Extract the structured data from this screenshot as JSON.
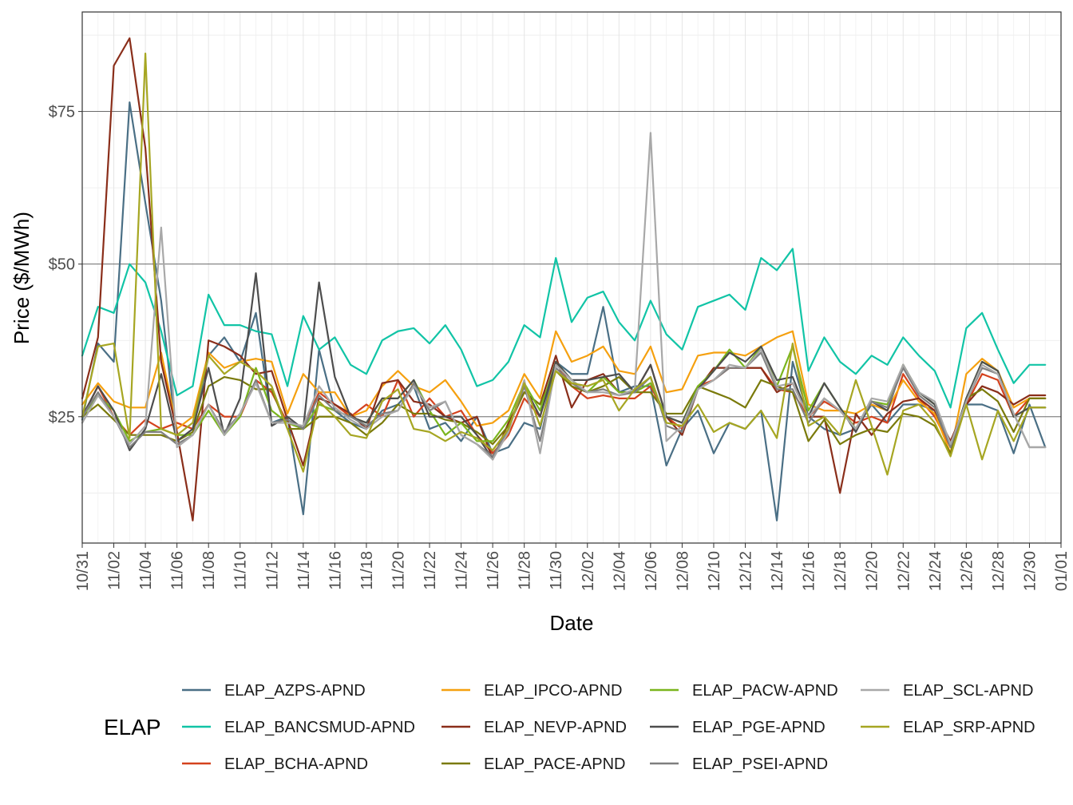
{
  "chart_data": {
    "type": "line",
    "xlabel": "Date",
    "ylabel": "Price ($/MWh)",
    "legend_title": "ELAP",
    "legend_position": "bottom",
    "grid": true,
    "ylim": [
      4.3,
      91.3
    ],
    "yticks": [
      25,
      50,
      75
    ],
    "ytick_labels": [
      "$25",
      "$50",
      "$75"
    ],
    "xlim": [
      0,
      62
    ],
    "xticks": [
      0,
      2,
      4,
      6,
      8,
      10,
      12,
      14,
      16,
      18,
      20,
      22,
      24,
      26,
      28,
      30,
      32,
      34,
      36,
      38,
      40,
      42,
      44,
      46,
      48,
      50,
      52,
      54,
      56,
      58,
      60,
      62
    ],
    "xtick_labels": [
      "10/31",
      "11/02",
      "11/04",
      "11/06",
      "11/08",
      "11/10",
      "11/12",
      "11/14",
      "11/16",
      "11/18",
      "11/20",
      "11/22",
      "11/24",
      "11/26",
      "11/28",
      "11/30",
      "12/02",
      "12/04",
      "12/06",
      "12/08",
      "12/10",
      "12/12",
      "12/14",
      "12/16",
      "12/18",
      "12/20",
      "12/22",
      "12/24",
      "12/26",
      "12/28",
      "12/30",
      "01/01"
    ],
    "x": [
      "10/31",
      "11/01",
      "11/02",
      "11/03",
      "11/04",
      "11/05",
      "11/06",
      "11/07",
      "11/08",
      "11/09",
      "11/10",
      "11/11",
      "11/12",
      "11/13",
      "11/14",
      "11/15",
      "11/16",
      "11/17",
      "11/18",
      "11/19",
      "11/20",
      "11/21",
      "11/22",
      "11/23",
      "11/24",
      "11/25",
      "11/26",
      "11/27",
      "11/28",
      "11/29",
      "11/30",
      "12/01",
      "12/02",
      "12/03",
      "12/04",
      "12/05",
      "12/06",
      "12/07",
      "12/08",
      "12/09",
      "12/10",
      "12/11",
      "12/12",
      "12/13",
      "12/14",
      "12/15",
      "12/16",
      "12/17",
      "12/18",
      "12/19",
      "12/20",
      "12/21",
      "12/22",
      "12/23",
      "12/24",
      "12/25",
      "12/26",
      "12/27",
      "12/28",
      "12/29",
      "12/30",
      "12/31"
    ],
    "series": [
      {
        "name": "ELAP_AZPS-APND",
        "color": "#4a6f85",
        "values": [
          24.5,
          37,
          34,
          76.5,
          60,
          44,
          21,
          23,
          35,
          38,
          34,
          42,
          24,
          25,
          9,
          36,
          26,
          24,
          23,
          26,
          27,
          30,
          23,
          24,
          21,
          25,
          19,
          20,
          24,
          23,
          34,
          32,
          32,
          43,
          29,
          30,
          30,
          17,
          23,
          26,
          19,
          24,
          23,
          26,
          8,
          34,
          25,
          23,
          22,
          23,
          27,
          24,
          27,
          27,
          26,
          20,
          27,
          27,
          26,
          19,
          27,
          20
        ]
      },
      {
        "name": "ELAP_BANCSMUD-APND",
        "color": "#11c4a6",
        "values": [
          35,
          43,
          42,
          50,
          47,
          39,
          28.5,
          30,
          45,
          40,
          40,
          39,
          38.5,
          30,
          41.5,
          36,
          38,
          33.5,
          32,
          37.5,
          39,
          39.5,
          37,
          40,
          36,
          30,
          31,
          34,
          40,
          38,
          51,
          40.5,
          44.5,
          45.5,
          40.5,
          37.5,
          44,
          38.5,
          36,
          43,
          44,
          45,
          42.5,
          51,
          49,
          52.5,
          32.5,
          38,
          34,
          32,
          35,
          33.5,
          38,
          35,
          32.5,
          26.5,
          39.5,
          42,
          36,
          30.5,
          33.5,
          33.5
        ]
      },
      {
        "name": "ELAP_BCHA-APND",
        "color": "#d4421e",
        "values": [
          25,
          30,
          25,
          22,
          24.5,
          23,
          24,
          23,
          27,
          25,
          25,
          31,
          29,
          24,
          23,
          29,
          27,
          25,
          27,
          25,
          31,
          25,
          28,
          25,
          26,
          22,
          19,
          22,
          28,
          25,
          34,
          30,
          28,
          28.5,
          28,
          28,
          30,
          25,
          23,
          30,
          31,
          33,
          33,
          33,
          29.5,
          29,
          25,
          27.5,
          26,
          24,
          25,
          24,
          32,
          28,
          25,
          20,
          27,
          32,
          31,
          25,
          28,
          28
        ]
      },
      {
        "name": "ELAP_IPCO-APND",
        "color": "#f5a00f",
        "values": [
          27,
          30.5,
          27.5,
          26.5,
          26.5,
          35.5,
          23,
          25,
          35.5,
          33,
          34,
          34.5,
          34,
          25.5,
          32,
          29,
          29,
          25,
          26,
          30,
          32.5,
          30,
          29,
          31,
          27.5,
          23.5,
          24,
          26,
          32,
          28,
          39,
          34,
          35,
          36.5,
          32.5,
          32,
          36.5,
          29,
          29.5,
          35,
          35.5,
          35.5,
          35,
          36.5,
          38,
          39,
          27,
          26,
          26,
          25.5,
          27,
          26,
          31,
          27.5,
          25.5,
          19,
          32,
          34.5,
          32.5,
          26.5,
          28,
          28
        ]
      },
      {
        "name": "ELAP_NEVP-APND",
        "color": "#8a2e1a",
        "values": [
          28,
          38,
          82.5,
          87,
          69,
          34,
          22.5,
          8,
          37.5,
          36.5,
          35,
          32,
          32.5,
          24.5,
          17,
          28,
          27,
          25.5,
          23,
          30.5,
          31,
          27.5,
          27,
          25,
          24,
          25,
          18,
          24,
          29,
          27,
          35,
          26.5,
          31,
          32,
          29,
          29,
          33.5,
          25,
          22,
          29.5,
          33,
          33,
          33,
          33,
          29,
          30.5,
          25,
          25,
          12.5,
          25.5,
          22,
          25.5,
          27.5,
          28,
          26,
          21,
          27,
          30,
          29,
          27,
          28.5,
          28.5
        ]
      },
      {
        "name": "ELAP_PACE-APND",
        "color": "#7a7a0a",
        "values": [
          25,
          27,
          24.5,
          22,
          22,
          22,
          21,
          22.5,
          30,
          31.5,
          31,
          29.5,
          29.5,
          23,
          23,
          25,
          25,
          24,
          22,
          24,
          27,
          25.5,
          25.5,
          24.5,
          24,
          22.5,
          20.5,
          23.5,
          29,
          27,
          32.5,
          30,
          29,
          30,
          31.5,
          29,
          29,
          25.5,
          25.5,
          30,
          29,
          28,
          26.5,
          31,
          30,
          29,
          21,
          24.5,
          20.5,
          22,
          23,
          22.5,
          25.5,
          25,
          23.5,
          19,
          28,
          29.5,
          27.5,
          22.5,
          28,
          28
        ]
      },
      {
        "name": "ELAP_PACW-APND",
        "color": "#7ab51d",
        "values": [
          25,
          28.5,
          26,
          21,
          22.5,
          23,
          22,
          22,
          26,
          22,
          25,
          33,
          26,
          24,
          23,
          27,
          26,
          25,
          24,
          28,
          28,
          31,
          26,
          22,
          24,
          21,
          21,
          24.5,
          30.5,
          26,
          34,
          31,
          29,
          31.5,
          29,
          29,
          30.5,
          25,
          24,
          30,
          32.5,
          36,
          33,
          36.5,
          30,
          36.5,
          26,
          30.5,
          26.5,
          23,
          27.5,
          27,
          33.5,
          29,
          27,
          20,
          28,
          34,
          32.5,
          25,
          26.5,
          26.5
        ]
      },
      {
        "name": "ELAP_PGE-APND",
        "color": "#4d4d4d",
        "values": [
          25,
          30,
          26,
          19.5,
          23,
          32,
          21,
          23,
          33,
          22,
          28,
          48.5,
          23.5,
          25,
          23,
          47,
          31.5,
          25,
          24,
          28,
          28,
          31,
          25,
          25,
          25,
          22,
          18,
          23,
          30,
          25,
          34,
          31,
          31,
          31.5,
          32,
          29,
          33.5,
          25,
          24,
          29.5,
          32.5,
          35.5,
          34,
          36.5,
          31,
          31.5,
          25,
          30.5,
          26.5,
          22.5,
          27.5,
          26,
          33.5,
          29,
          27,
          20,
          28,
          34,
          32.5,
          25,
          26.5,
          26.5
        ]
      },
      {
        "name": "ELAP_PSEI-APND",
        "color": "#7f7f7f",
        "values": [
          25,
          29,
          25,
          20,
          22.5,
          22.5,
          20.5,
          22,
          27,
          22.5,
          25.5,
          31,
          24,
          24.5,
          23,
          28.5,
          26,
          25,
          23.5,
          25.5,
          26,
          30.5,
          26,
          27.5,
          22,
          20.5,
          18.5,
          23,
          30,
          21,
          33,
          30.5,
          29,
          29.5,
          28.5,
          29,
          31.5,
          23.5,
          22.5,
          29.5,
          31,
          33,
          33,
          35.5,
          29.5,
          29.5,
          24,
          28,
          26,
          23,
          27.5,
          26.5,
          33,
          28.5,
          26.5,
          20,
          27.5,
          33,
          32,
          25.5,
          20,
          20
        ]
      },
      {
        "name": "ELAP_SCL-APND",
        "color": "#a8a8a8",
        "values": [
          24,
          28.5,
          25,
          20.5,
          23.5,
          56,
          20,
          22,
          27,
          22,
          25.5,
          30.5,
          24,
          24,
          23.5,
          30,
          26.5,
          24.5,
          23,
          25,
          26,
          30,
          26.5,
          27.5,
          22,
          20.5,
          18,
          22.5,
          31,
          19,
          33.5,
          31,
          29,
          29,
          28.5,
          29.5,
          71.5,
          21,
          23.5,
          29.5,
          31,
          33.5,
          33,
          36,
          30,
          30.5,
          25,
          28,
          26,
          23,
          28,
          27.5,
          33.5,
          29,
          27.5,
          20.5,
          27.5,
          33.5,
          32,
          25.5,
          20,
          20
        ]
      },
      {
        "name": "ELAP_SRP-APND",
        "color": "#a6a622",
        "values": [
          25,
          36.5,
          37,
          21.5,
          84.5,
          23,
          22,
          24,
          35,
          32,
          34,
          32.5,
          30,
          23,
          16,
          27.5,
          25,
          22,
          21.5,
          27.5,
          29.5,
          23,
          22.5,
          21,
          22.5,
          21.5,
          19.5,
          23,
          30.5,
          23.5,
          32.5,
          30.5,
          30,
          31,
          26,
          29.5,
          31.5,
          24,
          23.5,
          27,
          22.5,
          24,
          23,
          26,
          21.5,
          37,
          23.5,
          25,
          22,
          31,
          23.5,
          15.5,
          26,
          27,
          24,
          18.5,
          27,
          18,
          26,
          21,
          26.5,
          26.5
        ]
      }
    ]
  }
}
